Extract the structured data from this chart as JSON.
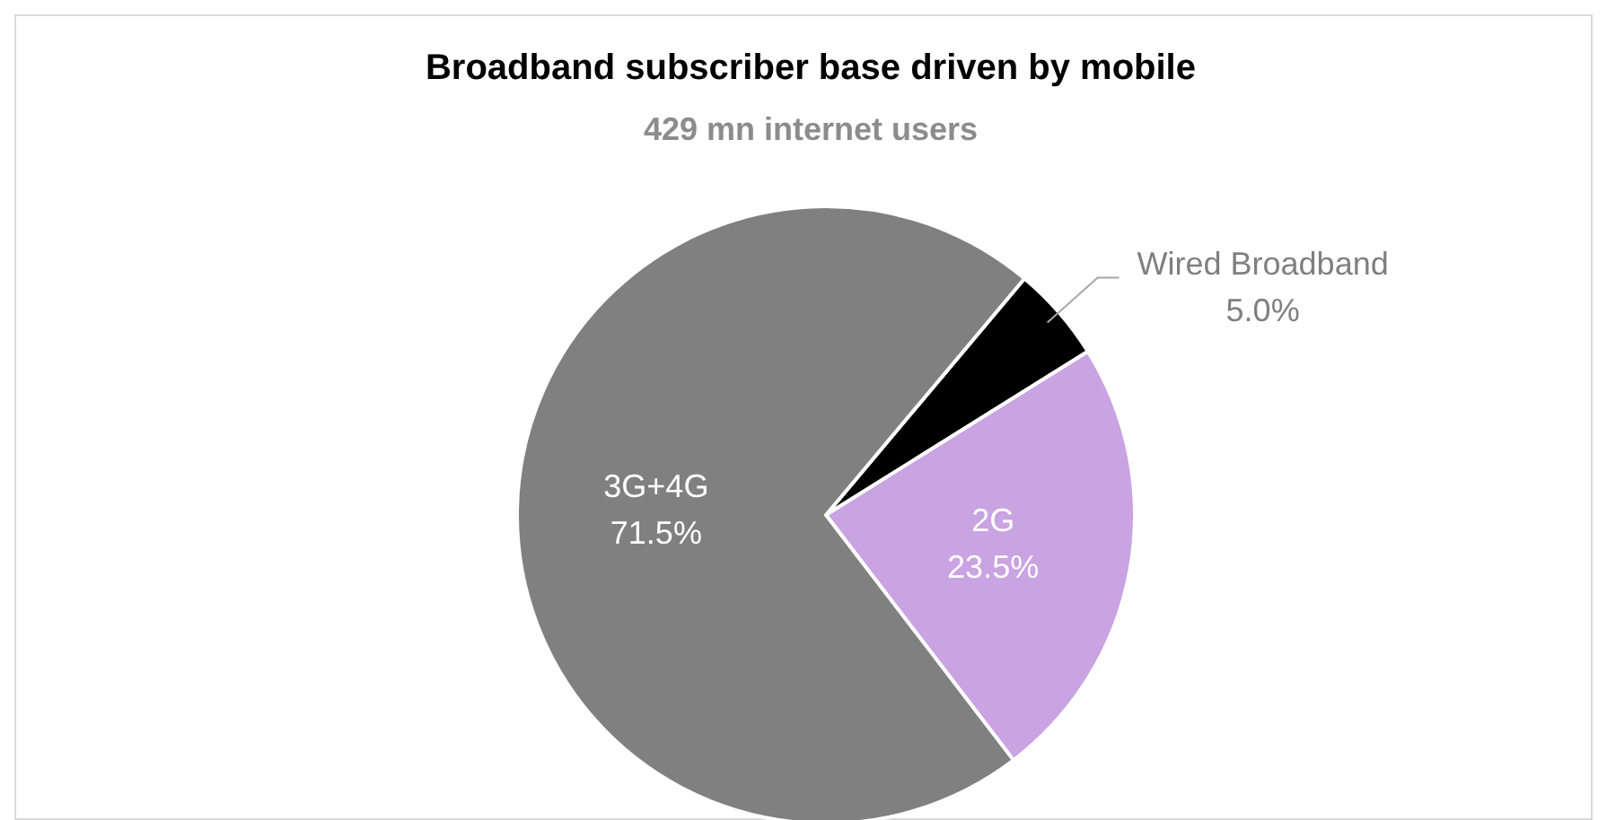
{
  "chart_data": {
    "type": "pie",
    "title": "Broadband subscriber base driven by mobile",
    "subtitle": "429 mn internet users",
    "categories": [
      "Wired Broadband",
      "2G",
      "3G+4G"
    ],
    "values": [
      5.0,
      23.5,
      71.5
    ],
    "colors": [
      "#000000",
      "#c9a3e2",
      "#808080"
    ],
    "value_labels": [
      "5.0%",
      "23.5%",
      "71.5%"
    ]
  }
}
